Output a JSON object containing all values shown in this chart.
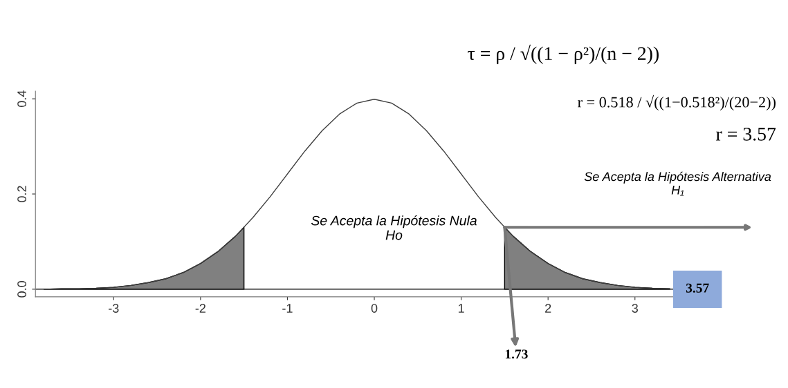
{
  "chart_data": {
    "type": "line",
    "xlim": [
      -3.9,
      3.9
    ],
    "ylim": [
      -0.016,
      0.416
    ],
    "xticks": [
      -3,
      -2,
      -1,
      0,
      1,
      2,
      3
    ],
    "yticks": [
      {
        "value": 0,
        "label": "0.0"
      },
      {
        "value": 0.2,
        "label": "0.2"
      },
      {
        "value": 0.4,
        "label": "0.4"
      }
    ],
    "grid": false,
    "series": [
      {
        "type": "area",
        "color": "#808080",
        "x": [
          -3.8,
          -3.6,
          -3.4,
          -3.2,
          -3.0,
          -2.8,
          -2.6,
          -2.4,
          -2.2,
          -2.0,
          -1.8,
          -1.6,
          -1.5
        ],
        "values": [
          0.0,
          0.001,
          0.001,
          0.002,
          0.004,
          0.008,
          0.014,
          0.022,
          0.035,
          0.054,
          0.079,
          0.111,
          0.13
        ]
      },
      {
        "type": "area",
        "color": "#808080",
        "x": [
          1.5,
          1.6,
          1.8,
          2.0,
          2.2,
          2.4,
          2.6,
          2.8,
          3.0,
          3.2,
          3.4
        ],
        "values": [
          0.13,
          0.111,
          0.079,
          0.054,
          0.035,
          0.022,
          0.014,
          0.008,
          0.004,
          0.002,
          0.001
        ]
      },
      {
        "color": "#404040",
        "x": [
          -3.8,
          -3.6,
          -3.4,
          -3.2,
          -3.0,
          -2.8,
          -2.6,
          -2.4,
          -2.2,
          -2.0,
          -1.8,
          -1.6,
          -1.4,
          -1.2,
          -1.0,
          -0.8,
          -0.6,
          -0.4,
          -0.2,
          0.0,
          0.2,
          0.4,
          0.6,
          0.8,
          1.0,
          1.2,
          1.4,
          1.6,
          1.8,
          2.0,
          2.2,
          2.4,
          2.6,
          2.8,
          3.0,
          3.2,
          3.4
        ],
        "values": [
          0.0,
          0.001,
          0.001,
          0.002,
          0.004,
          0.008,
          0.014,
          0.022,
          0.035,
          0.054,
          0.079,
          0.111,
          0.15,
          0.194,
          0.242,
          0.29,
          0.333,
          0.368,
          0.391,
          0.399,
          0.391,
          0.368,
          0.333,
          0.29,
          0.242,
          0.194,
          0.15,
          0.111,
          0.079,
          0.054,
          0.035,
          0.022,
          0.014,
          0.008,
          0.004,
          0.002,
          0.001
        ]
      }
    ],
    "ref_lines": [
      {
        "axis": "y",
        "value": 0,
        "color": "#000000"
      }
    ],
    "annotations": [
      "τ = ρ / √((1 − ρ²)/(n − 2))",
      "r = 0.518 / √((1−0.518²)/(20−2))",
      "r = 3.57",
      "Se Acepta la Hipótesis Nula\nHo",
      "Se Acepta la Hipótesis Alternativa\nH₁",
      {
        "text": "1.73",
        "x": 1.5,
        "y": 0.13
      },
      {
        "text": "3.57",
        "x": 3.72,
        "y": 0
      }
    ]
  }
}
